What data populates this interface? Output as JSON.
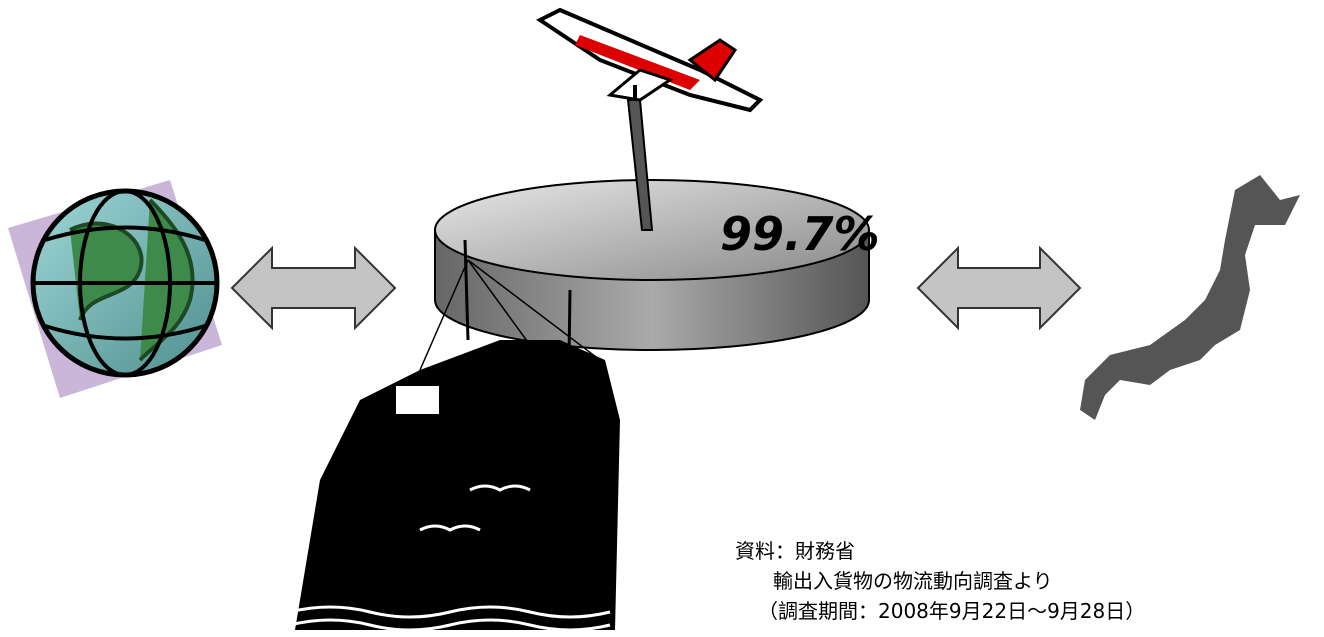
{
  "pie_label": "99.7%",
  "source": {
    "line1": "資料：財務省",
    "line2": "輸出入貨物の物流動向調査より",
    "line3": "（調査期間：2008年9月22日～9月28日）"
  }
}
